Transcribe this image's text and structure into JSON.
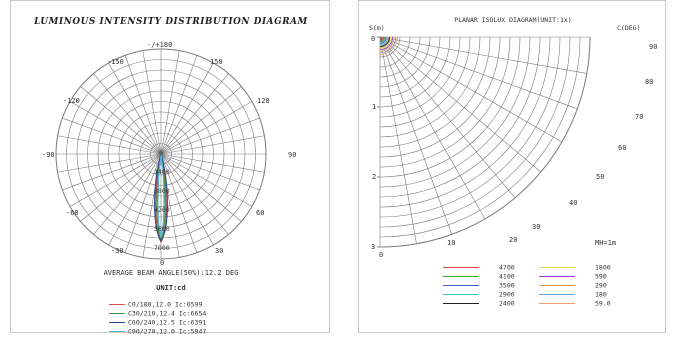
{
  "left": {
    "title": "LUMINOUS INTENSITY DISTRIBUTION DIAGRAM",
    "angle_labels": {
      "top": "-/+180",
      "m150": "-150",
      "p150": "150",
      "m120": "-120",
      "p120": "120",
      "m90": "-90",
      "p90": "90",
      "m60": "-60",
      "p60": "60",
      "m30": "-30",
      "p30": "30",
      "bottom": "0"
    },
    "radial_labels": [
      "0",
      "1400",
      "2800",
      "4200",
      "5600",
      "7000"
    ],
    "beam_angle": "AVERAGE BEAM ANGLE(50%):12.2 DEG",
    "unit": "UNIT:cd",
    "legend": [
      {
        "label": "C0/180,12.0 Ic:6599",
        "color": "#d94a4a"
      },
      {
        "label": "C30/210,12.4 Ic:6654",
        "color": "#3e9a3e"
      },
      {
        "label": "C60/240,12.5 Ic:6391",
        "color": "#2a3f8f"
      },
      {
        "label": "C90/270,12.0 Ic:5947",
        "color": "#4fb3d9"
      }
    ]
  },
  "right": {
    "title": "PLANAR ISOLUX DIAGRAM(UNIT:1x)",
    "y_axis_title": "S(m)",
    "x_axis_title": "C(DEG)",
    "y_ticks": [
      "0",
      "1",
      "2",
      "3"
    ],
    "x_ticks": [
      "0",
      "10",
      "20",
      "30"
    ],
    "angle_labels": [
      "90",
      "80",
      "70",
      "60",
      "50",
      "40"
    ],
    "mh": "MH=1m",
    "legend": [
      {
        "value": "4700",
        "color": "#e23c3c"
      },
      {
        "value": "4100",
        "color": "#3ea83e"
      },
      {
        "value": "3500",
        "color": "#3f63c9"
      },
      {
        "value": "2900",
        "color": "#3fc4c4"
      },
      {
        "value": "2400",
        "color": "#222222"
      },
      {
        "value": "1800",
        "color": "#e8d84a"
      },
      {
        "value": "590",
        "color": "#9b3ec9"
      },
      {
        "value": "290",
        "color": "#e89a3e"
      },
      {
        "value": "180",
        "color": "#5fa0d8"
      },
      {
        "value": "59.0",
        "color": "#e8a070"
      }
    ]
  }
}
